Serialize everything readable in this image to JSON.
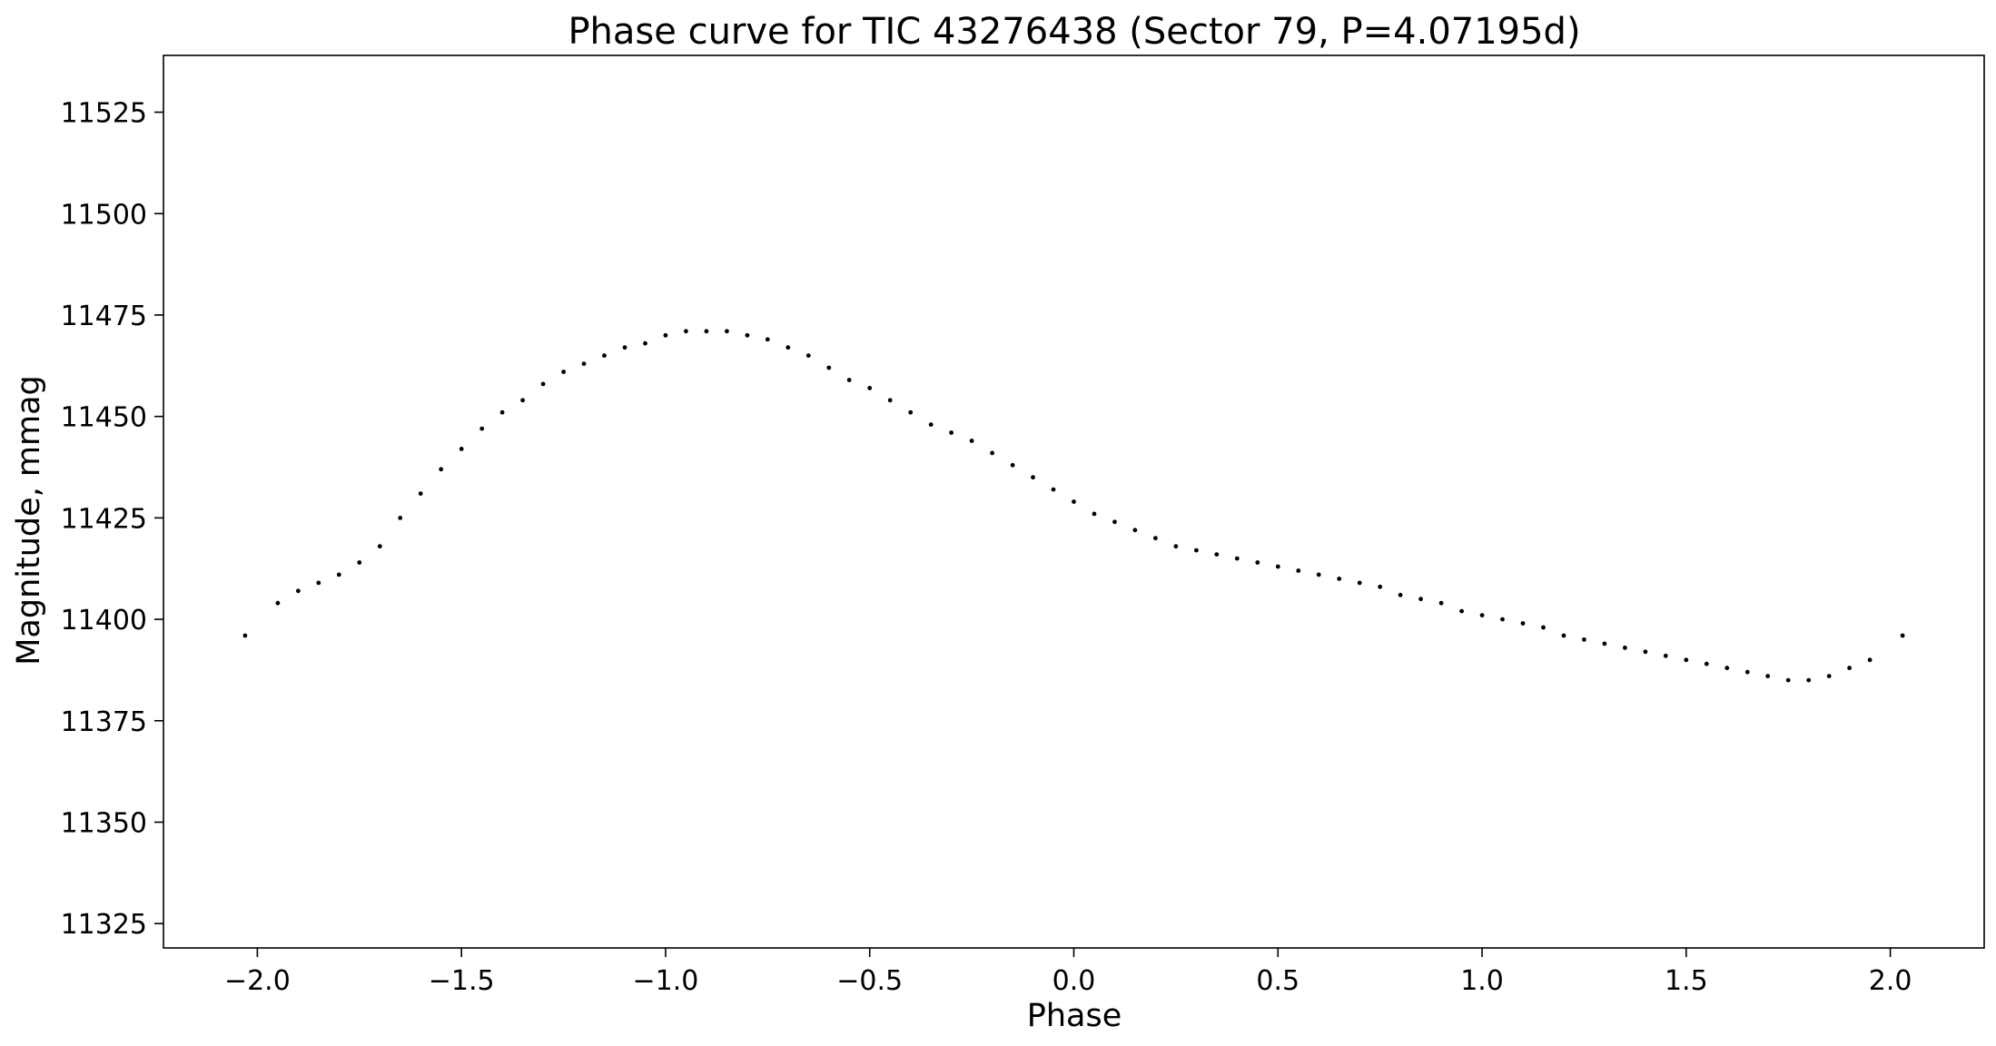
{
  "chart_data": {
    "type": "scatter",
    "title": "Phase curve for TIC 43276438 (Sector 79, P=4.07195d)",
    "xlabel": "Phase",
    "ylabel": "Magnitude, mmag",
    "xlim": [
      -2.23,
      2.23
    ],
    "ylim": [
      11319,
      11539
    ],
    "xticks": [
      -2.0,
      -1.5,
      -1.0,
      -0.5,
      0.0,
      0.5,
      1.0,
      1.5,
      2.0
    ],
    "xtick_labels": [
      "−2.0",
      "−1.5",
      "−1.0",
      "−0.5",
      "0.0",
      "0.5",
      "1.0",
      "1.5",
      "2.0"
    ],
    "yticks": [
      11325,
      11350,
      11375,
      11400,
      11425,
      11450,
      11475,
      11500,
      11525
    ],
    "ytick_labels": [
      "11325",
      "11350",
      "11375",
      "11400",
      "11425",
      "11450",
      "11475",
      "11500",
      "11525"
    ],
    "grid": false,
    "marker_color": "#000000",
    "series": [
      {
        "x": [
          -2.03,
          -1.95,
          -1.9,
          -1.85,
          -1.8,
          -1.75,
          -1.7,
          -1.65,
          -1.6,
          -1.55,
          -1.5,
          -1.45,
          -1.4,
          -1.35,
          -1.3,
          -1.25,
          -1.2,
          -1.15,
          -1.1,
          -1.05,
          -1.0,
          -0.95,
          -0.9,
          -0.85,
          -0.8,
          -0.75,
          -0.7,
          -0.65,
          -0.6,
          -0.55,
          -0.5,
          -0.45,
          -0.4,
          -0.35,
          -0.3,
          -0.25,
          -0.2,
          -0.15,
          -0.1,
          -0.05,
          0.0,
          0.05,
          0.1,
          0.15,
          0.2,
          0.25,
          0.3,
          0.35,
          0.4,
          0.45,
          0.5,
          0.55,
          0.6,
          0.65,
          0.7,
          0.75,
          0.8,
          0.85,
          0.9,
          0.95,
          1.0,
          1.05,
          1.1,
          1.15,
          1.2,
          1.25,
          1.3,
          1.35,
          1.4,
          1.45,
          1.5,
          1.55,
          1.6,
          1.65,
          1.7,
          1.75,
          1.8,
          1.85,
          1.9,
          1.95,
          2.03
        ],
        "y": [
          11396,
          11404,
          11407,
          11409,
          11411,
          11414,
          11418,
          11425,
          11431,
          11437,
          11442,
          11447,
          11451,
          11454,
          11458,
          11461,
          11463,
          11465,
          11467,
          11468,
          11470,
          11471,
          11471,
          11471,
          11470,
          11469,
          11467,
          11465,
          11462,
          11459,
          11457,
          11454,
          11451,
          11448,
          11446,
          11444,
          11441,
          11438,
          11435,
          11432,
          11429,
          11426,
          11424,
          11422,
          11420,
          11418,
          11417,
          11416,
          11415,
          11414,
          11413,
          11412,
          11411,
          11410,
          11409,
          11408,
          11406,
          11405,
          11404,
          11402,
          11401,
          11400,
          11399,
          11398,
          11396,
          11395,
          11394,
          11393,
          11392,
          11391,
          11390,
          11389,
          11388,
          11387,
          11386,
          11385,
          11385,
          11386,
          11388,
          11390,
          11396
        ]
      }
    ]
  }
}
